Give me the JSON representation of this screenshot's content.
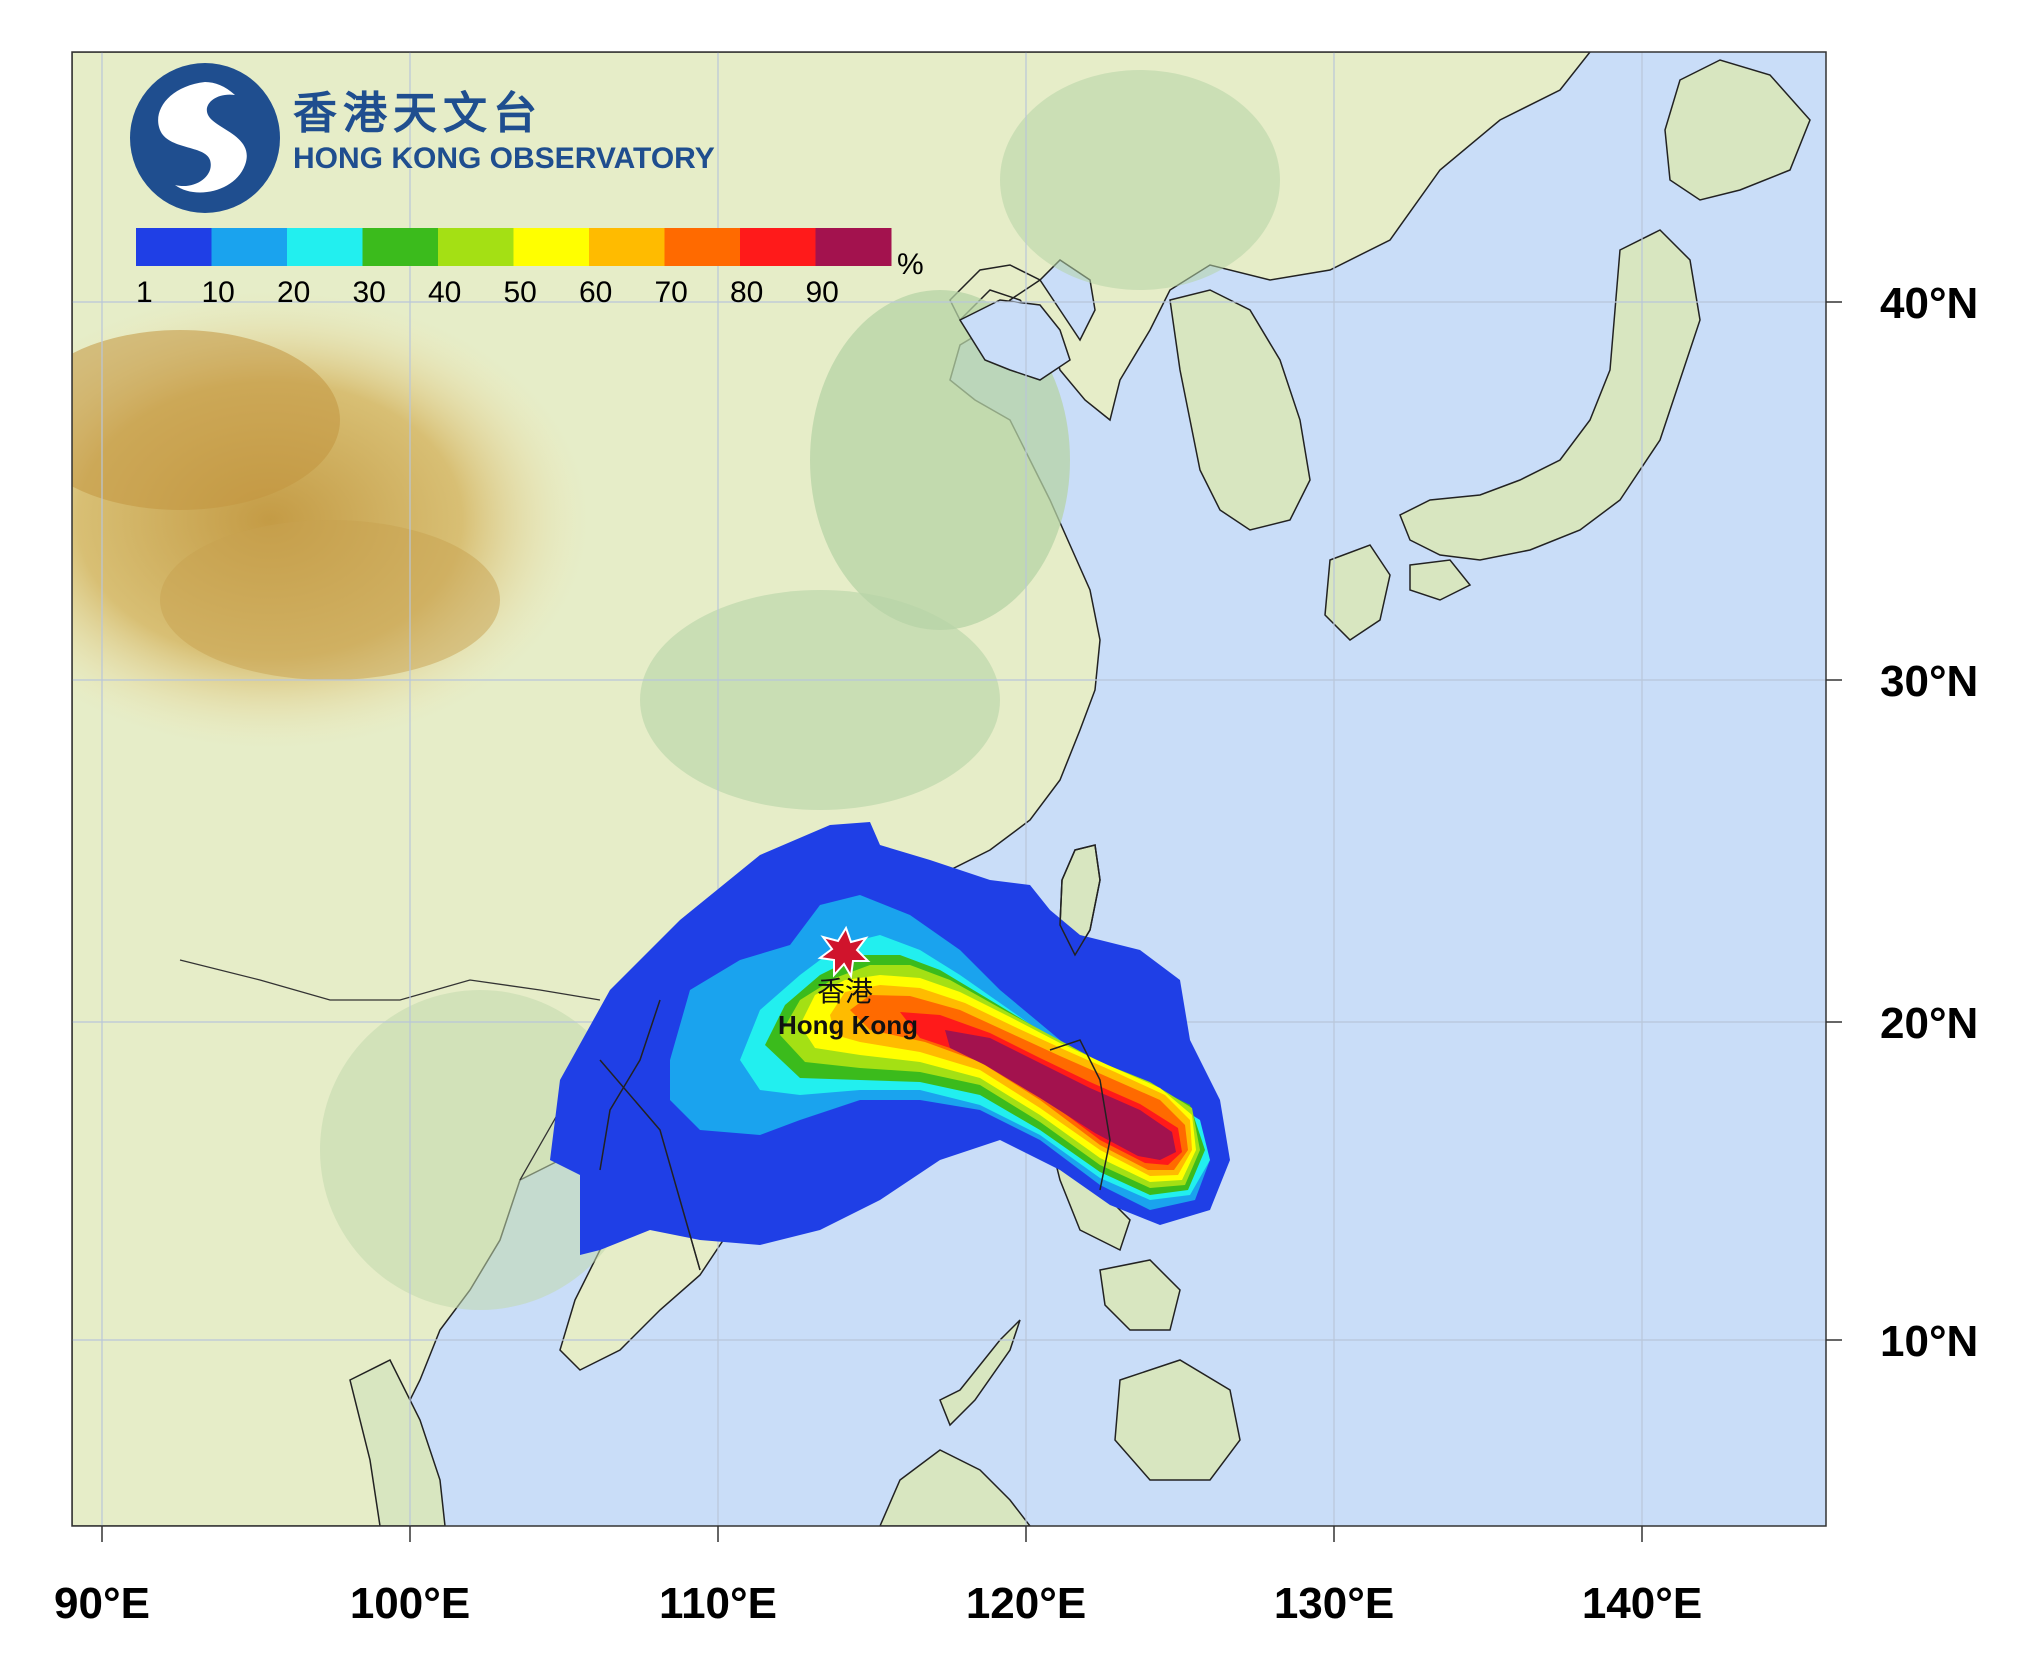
{
  "logo": {
    "title_zh": "香港天文台",
    "title_en": "HONG KONG OBSERVATORY"
  },
  "legend": {
    "unit": "%",
    "ticks": [
      "1",
      "10",
      "20",
      "30",
      "40",
      "50",
      "60",
      "70",
      "80",
      "90"
    ],
    "colors": [
      "#1f3fe6",
      "#1aa3ee",
      "#22efef",
      "#3bbb1c",
      "#a4e014",
      "#ffff00",
      "#ffbb00",
      "#ff6a00",
      "#ff1a1a",
      "#a3124e"
    ]
  },
  "axes": {
    "lon_labels": [
      "90°E",
      "100°E",
      "110°E",
      "120°E",
      "130°E",
      "140°E"
    ],
    "lat_labels": [
      "40°N",
      "30°N",
      "20°N",
      "10°N"
    ]
  },
  "marker": {
    "name_zh": "香港",
    "name_en": "Hong Kong",
    "color": "#d0142c"
  },
  "colors": {
    "ocean": "#c9ddf8",
    "land_low": "#d9e8c3",
    "land_high": "#c7a44f",
    "lowland_green": "#b5d3a6"
  }
}
